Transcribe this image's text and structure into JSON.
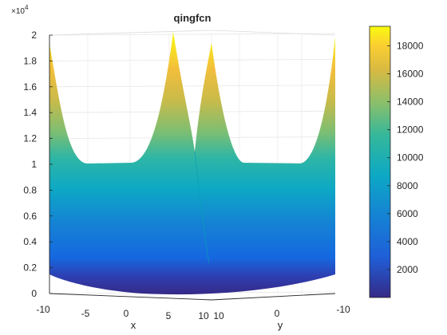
{
  "chart_data": {
    "type": "surface",
    "title": "qingfcn",
    "xlabel": "x",
    "ylabel": "y",
    "zlabel": "",
    "x_range": [
      -10,
      10
    ],
    "y_range": [
      -10,
      10
    ],
    "zlim": [
      0,
      20000
    ],
    "z_exponent_label": "×10",
    "z_exponent_power": "4",
    "x_ticks": [
      "-10",
      "-5",
      "0",
      "5",
      "10"
    ],
    "y_ticks": [
      "10",
      "0",
      "-10"
    ],
    "z_ticks": [
      "0",
      "0.2",
      "0.4",
      "0.6",
      "0.8",
      "1",
      "1.2",
      "1.4",
      "1.6",
      "1.8",
      "2"
    ],
    "colormap": "parula",
    "colorbar": {
      "limits": [
        0,
        19400
      ],
      "ticks": [
        "2000",
        "4000",
        "6000",
        "8000",
        "10000",
        "12000",
        "14000",
        "16000",
        "18000"
      ]
    },
    "grid": true
  }
}
